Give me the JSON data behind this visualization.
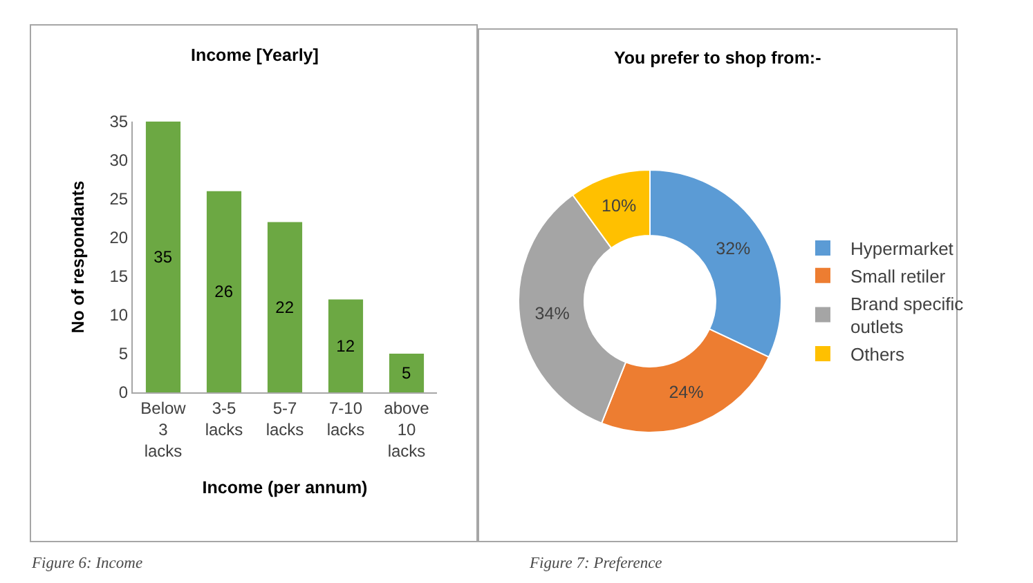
{
  "chart_data": [
    {
      "type": "bar",
      "title": "Income [Yearly]",
      "xlabel": "Income (per annum)",
      "ylabel": "No of respondants",
      "categories": [
        "Below 3 lacks",
        "3-5 lacks",
        "5-7 lacks",
        "7-10 lacks",
        "above 10 lacks"
      ],
      "values": [
        35,
        26,
        22,
        12,
        5
      ],
      "color": "#6ca843",
      "ylim": [
        0,
        35
      ],
      "yticks": [
        0,
        5,
        10,
        15,
        20,
        25,
        30,
        35
      ],
      "data_labels": true,
      "annotations": [
        "Figure 6: Income"
      ]
    },
    {
      "type": "donut",
      "title": "You prefer to shop from:-",
      "categories": [
        "Hypermarket",
        "Small retiler",
        "Brand specific outlets",
        "Others"
      ],
      "values": [
        32,
        24,
        34,
        10
      ],
      "colors": [
        "#5b9bd5",
        "#ed7d31",
        "#a5a5a5",
        "#ffc000"
      ],
      "value_labels": [
        "32%",
        "24%",
        "34%",
        "10%"
      ],
      "legend": "right",
      "annotations": [
        "Figure 7: Preference"
      ]
    }
  ]
}
